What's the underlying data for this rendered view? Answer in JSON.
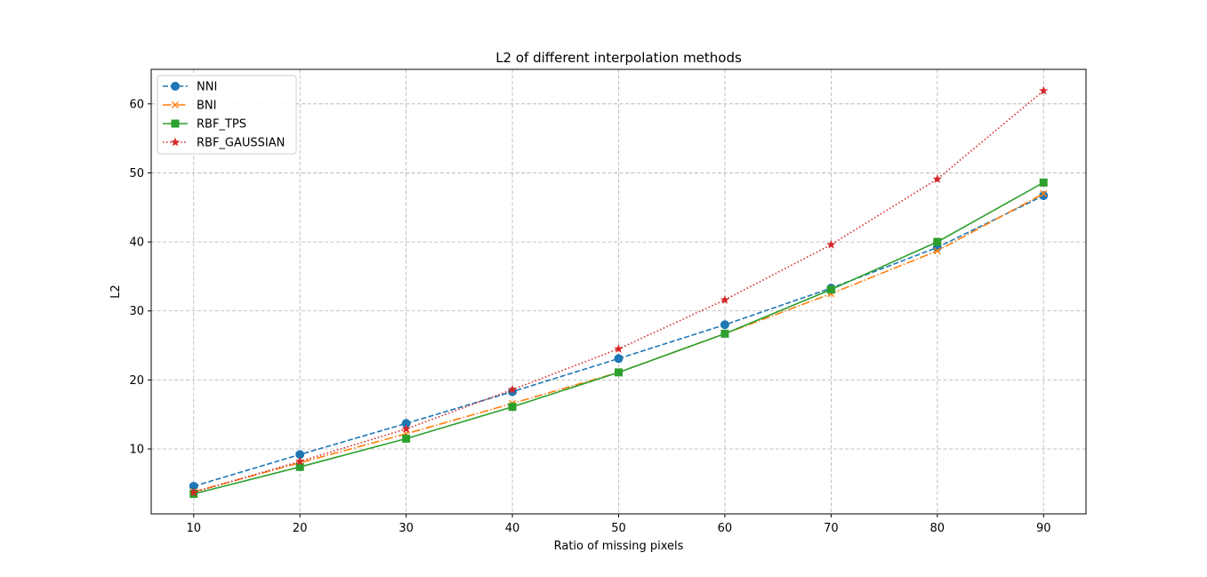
{
  "chart_data": {
    "type": "line",
    "title": "L2 of different interpolation methods",
    "xlabel": "Ratio of missing pixels",
    "ylabel": "L2",
    "x": [
      10,
      20,
      30,
      40,
      50,
      60,
      70,
      80,
      90
    ],
    "xlim": [
      6.0,
      94.0
    ],
    "ylim": [
      0.6,
      65.0
    ],
    "xticks": [
      10,
      20,
      30,
      40,
      50,
      60,
      70,
      80,
      90
    ],
    "yticks": [
      10,
      20,
      30,
      40,
      50,
      60
    ],
    "grid": true,
    "legend_position": "top-left",
    "series": [
      {
        "name": "NNI",
        "color": "#1f77b4",
        "dash": "dashed",
        "marker": "circle",
        "values": [
          4.6,
          9.2,
          13.7,
          18.3,
          23.1,
          28.0,
          33.3,
          39.2,
          46.7
        ]
      },
      {
        "name": "BNI",
        "color": "#ff7f0e",
        "dash": "dashdot",
        "marker": "x",
        "values": [
          3.8,
          8.0,
          12.2,
          16.6,
          21.1,
          26.7,
          32.5,
          38.7,
          47.0
        ]
      },
      {
        "name": "RBF_TPS",
        "color": "#2ca02c",
        "dash": "solid",
        "marker": "square",
        "values": [
          3.5,
          7.4,
          11.5,
          16.1,
          21.1,
          26.7,
          33.1,
          40.0,
          48.6
        ]
      },
      {
        "name": "RBF_GAUSSIAN",
        "color": "#d62728",
        "dash": "dotted",
        "marker": "star",
        "values": [
          3.7,
          8.2,
          12.9,
          18.6,
          24.5,
          31.6,
          39.6,
          49.1,
          61.9
        ]
      }
    ]
  }
}
